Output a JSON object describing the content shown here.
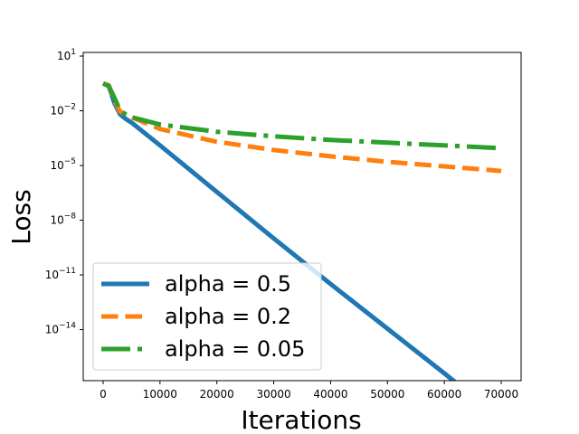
{
  "chart_data": {
    "type": "line",
    "title": "",
    "xlabel": "Iterations",
    "ylabel": "Loss",
    "xlim": [
      -3500,
      73500
    ],
    "ylim_log10": [
      -16.8,
      1.2
    ],
    "yscale": "log",
    "grid": false,
    "legend_position": "lower-left",
    "x_ticks": [
      {
        "value": 0,
        "label": "0"
      },
      {
        "value": 10000,
        "label": "10000"
      },
      {
        "value": 20000,
        "label": "20000"
      },
      {
        "value": 30000,
        "label": "30000"
      },
      {
        "value": 40000,
        "label": "40000"
      },
      {
        "value": 50000,
        "label": "50000"
      },
      {
        "value": 60000,
        "label": "60000"
      },
      {
        "value": 70000,
        "label": "70000"
      }
    ],
    "y_ticks": [
      {
        "exp": 1,
        "base": "10",
        "sup": "1"
      },
      {
        "exp": -2,
        "base": "10",
        "sup": "−2"
      },
      {
        "exp": -5,
        "base": "10",
        "sup": "−5"
      },
      {
        "exp": -8,
        "base": "10",
        "sup": "−8"
      },
      {
        "exp": -11,
        "base": "10",
        "sup": "−11"
      },
      {
        "exp": -14,
        "base": "10",
        "sup": "−14"
      }
    ],
    "series": [
      {
        "name": "alpha = 0.5",
        "color": "#1f77b4",
        "dash": "solid",
        "x": [
          0,
          1000,
          2000,
          3000,
          4000,
          5000,
          10000,
          20000,
          30000,
          40000,
          50000,
          60000,
          70000
        ],
        "log10_y": [
          -0.5,
          -0.65,
          -1.6,
          -2.2,
          -2.45,
          -2.65,
          -3.9,
          -6.45,
          -9.0,
          -11.5,
          -13.95,
          -16.4,
          -18.9
        ]
      },
      {
        "name": "alpha = 0.2",
        "color": "#ff7f0e",
        "dash": "dashed",
        "x": [
          0,
          1000,
          2000,
          3000,
          4000,
          5000,
          10000,
          20000,
          30000,
          40000,
          50000,
          60000,
          70000
        ],
        "log10_y": [
          -0.5,
          -0.6,
          -1.5,
          -2.05,
          -2.2,
          -2.35,
          -3.0,
          -3.7,
          -4.15,
          -4.5,
          -4.8,
          -5.05,
          -5.3
        ]
      },
      {
        "name": "alpha = 0.05",
        "color": "#2ca02c",
        "dash": "dashdot",
        "x": [
          0,
          1000,
          2000,
          3000,
          4000,
          5000,
          10000,
          20000,
          30000,
          40000,
          50000,
          60000,
          70000
        ],
        "log10_y": [
          -0.5,
          -0.65,
          -1.3,
          -2.0,
          -2.2,
          -2.35,
          -2.75,
          -3.15,
          -3.4,
          -3.6,
          -3.75,
          -3.9,
          -4.05
        ]
      }
    ]
  }
}
